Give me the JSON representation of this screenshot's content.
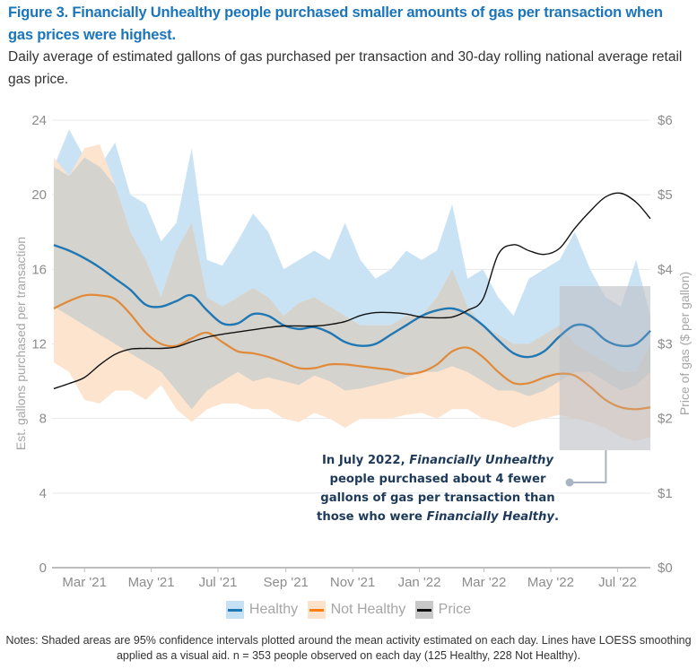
{
  "header": {
    "title": "Figure 3. Financially Unhealthy people purchased smaller amounts of gas per transaction when gas prices were highest.",
    "subtitle": "Daily average of estimated gallons of gas purchased per transaction and 30-day rolling national average retail gas price."
  },
  "colors": {
    "title": "#1a75bb",
    "healthy_line": "#1f77b4",
    "healthy_band": "#c6e1f4",
    "not_healthy_line": "#e08a3a",
    "not_healthy_band": "#fde3cc",
    "overlap_band": "#d5d3cd",
    "price_line": "#111111",
    "highlight_box": "#c9cbd0",
    "annotation_text": "#1e3a5a",
    "connector": "#aab4c0"
  },
  "chart_data": {
    "type": "line",
    "title": "Figure 3. Financially Unhealthy people purchased smaller amounts of gas per transaction when gas prices were highest.",
    "x_unit": "days since 2021-02-01",
    "x_range": [
      0,
      545
    ],
    "ylabel": "Est. gallons purchased per transaction",
    "ylabel_right": "Price of gas ($ per gallon)",
    "ylim": [
      0,
      24
    ],
    "ylim_right": [
      0,
      6
    ],
    "yticks": [
      "0",
      "4",
      "8",
      "12",
      "16",
      "20",
      "24"
    ],
    "yticks_right": [
      "$0",
      "$1",
      "$2",
      "$3",
      "$4",
      "$5",
      "$6"
    ],
    "xticks": [
      {
        "label": "Mar '21",
        "day": 28
      },
      {
        "label": "May '21",
        "day": 89
      },
      {
        "label": "Jul '21",
        "day": 150
      },
      {
        "label": "Sep '21",
        "day": 212
      },
      {
        "label": "Nov '21",
        "day": 273
      },
      {
        "label": "Jan '22",
        "day": 334
      },
      {
        "label": "Mar '22",
        "day": 393
      },
      {
        "label": "May '22",
        "day": 454
      },
      {
        "label": "Jul '22",
        "day": 515
      }
    ],
    "grid": true,
    "legend_position": "bottom",
    "series": [
      {
        "name": "Healthy",
        "axis": "left",
        "x": [
          0,
          14,
          28,
          42,
          56,
          70,
          84,
          98,
          112,
          126,
          140,
          154,
          168,
          182,
          196,
          210,
          224,
          238,
          252,
          266,
          280,
          294,
          308,
          322,
          336,
          350,
          364,
          378,
          392,
          406,
          420,
          434,
          448,
          462,
          476,
          490,
          504,
          518,
          532,
          545
        ],
        "values": [
          17.3,
          17.0,
          16.6,
          16.1,
          15.5,
          14.9,
          14.1,
          14.0,
          14.3,
          14.6,
          13.8,
          13.1,
          13.1,
          13.6,
          13.5,
          13.0,
          12.8,
          12.9,
          12.6,
          12.1,
          11.9,
          12.0,
          12.5,
          13.0,
          13.5,
          13.8,
          13.9,
          13.6,
          13.0,
          12.2,
          11.5,
          11.3,
          11.6,
          12.4,
          13.0,
          12.9,
          12.2,
          11.9,
          12.0,
          12.7
        ],
        "band_upper": [
          21.5,
          23.5,
          22.0,
          21.5,
          22.8,
          20.0,
          19.5,
          17.5,
          18.5,
          22.5,
          16.5,
          16.2,
          17.5,
          19.0,
          18.0,
          16.0,
          16.5,
          17.0,
          16.5,
          18.5,
          16.5,
          15.5,
          16.0,
          17.0,
          16.5,
          17.0,
          19.5,
          15.5,
          16.0,
          14.5,
          13.5,
          15.5,
          16.0,
          16.5,
          18.0,
          16.0,
          14.5,
          14.0,
          16.5,
          13.5
        ],
        "band_lower": [
          14.0,
          13.5,
          13.0,
          12.5,
          12.0,
          11.5,
          11.0,
          10.5,
          9.5,
          8.5,
          9.5,
          10.0,
          10.5,
          10.0,
          10.2,
          10.0,
          9.8,
          10.3,
          10.0,
          9.5,
          9.6,
          9.8,
          10.0,
          10.2,
          10.5,
          10.5,
          10.8,
          10.5,
          10.0,
          9.5,
          9.5,
          9.2,
          9.5,
          10.0,
          10.5,
          10.5,
          10.0,
          9.5,
          9.8,
          10.5
        ]
      },
      {
        "name": "Not Healthy",
        "axis": "left",
        "x": [
          0,
          14,
          28,
          42,
          56,
          70,
          84,
          98,
          112,
          126,
          140,
          154,
          168,
          182,
          196,
          210,
          224,
          238,
          252,
          266,
          280,
          294,
          308,
          322,
          336,
          350,
          364,
          378,
          392,
          406,
          420,
          434,
          448,
          462,
          476,
          490,
          504,
          518,
          532,
          545
        ],
        "values": [
          13.9,
          14.3,
          14.6,
          14.6,
          14.4,
          13.6,
          12.6,
          12.0,
          11.9,
          12.3,
          12.6,
          12.1,
          11.6,
          11.5,
          11.3,
          11.0,
          10.7,
          10.7,
          10.9,
          10.9,
          10.8,
          10.7,
          10.6,
          10.4,
          10.5,
          10.9,
          11.6,
          11.8,
          11.3,
          10.5,
          9.9,
          9.9,
          10.2,
          10.4,
          10.3,
          9.7,
          9.0,
          8.6,
          8.5,
          8.6
        ],
        "band_upper": [
          22.0,
          21.0,
          22.5,
          22.7,
          20.5,
          18.0,
          16.5,
          14.5,
          17.0,
          18.5,
          14.5,
          14.0,
          14.5,
          15.0,
          14.5,
          13.5,
          14.2,
          14.5,
          14.0,
          13.5,
          13.0,
          13.0,
          13.0,
          13.5,
          13.5,
          14.5,
          16.0,
          14.0,
          13.0,
          12.5,
          12.0,
          12.0,
          12.5,
          13.0,
          12.0,
          11.5,
          11.0,
          10.5,
          10.5,
          12.0
        ],
        "band_lower": [
          11.0,
          10.5,
          9.0,
          8.8,
          9.5,
          9.5,
          9.0,
          9.8,
          8.5,
          7.8,
          8.5,
          8.8,
          8.8,
          8.5,
          8.5,
          8.0,
          7.8,
          8.3,
          8.0,
          7.5,
          8.0,
          8.0,
          8.0,
          8.2,
          8.3,
          8.0,
          8.5,
          8.5,
          8.0,
          7.8,
          7.5,
          7.8,
          8.0,
          8.2,
          8.0,
          7.8,
          7.5,
          7.0,
          6.8,
          7.0
        ]
      },
      {
        "name": "Price",
        "axis": "right",
        "x": [
          0,
          14,
          28,
          42,
          56,
          70,
          84,
          98,
          112,
          126,
          140,
          154,
          168,
          182,
          196,
          210,
          224,
          238,
          252,
          266,
          280,
          294,
          308,
          322,
          336,
          350,
          364,
          378,
          392,
          406,
          420,
          434,
          448,
          462,
          476,
          490,
          504,
          518,
          532,
          545
        ],
        "values": [
          2.4,
          2.47,
          2.55,
          2.72,
          2.86,
          2.93,
          2.94,
          2.94,
          2.96,
          3.03,
          3.09,
          3.13,
          3.16,
          3.19,
          3.22,
          3.24,
          3.24,
          3.24,
          3.26,
          3.3,
          3.38,
          3.42,
          3.42,
          3.4,
          3.36,
          3.35,
          3.36,
          3.45,
          3.6,
          4.2,
          4.33,
          4.25,
          4.2,
          4.28,
          4.55,
          4.78,
          4.97,
          5.02,
          4.9,
          4.68
        ]
      }
    ],
    "annotation": {
      "text_lines": [
        [
          {
            "t": "In July 2022, ",
            "i": false
          },
          {
            "t": "Financially Unhealthy",
            "i": true
          }
        ],
        [
          {
            "t": "people purchased about 4 fewer",
            "i": false
          }
        ],
        [
          {
            "t": "gallons of gas per transaction than",
            "i": false
          }
        ],
        [
          {
            "t": "those who were ",
            "i": false
          },
          {
            "t": "Financially Healthy",
            "i": true
          },
          {
            "t": ".",
            "i": false
          }
        ]
      ],
      "highlight_x_range_days": [
        462,
        545
      ],
      "highlight_y_range": [
        6.3,
        15.1
      ]
    }
  },
  "legend": {
    "items": [
      {
        "label": "Healthy",
        "key": "healthy"
      },
      {
        "label": "Not Healthy",
        "key": "not_healthy"
      },
      {
        "label": "Price",
        "key": "price"
      }
    ]
  },
  "notes": "Notes: Shaded areas are 95% confidence intervals plotted around the mean activity estimated on each day. Lines have LOESS smoothing applied as a visual aid. n = 353 people observed on each day (125 Healthy, 228 Not Healthy)."
}
